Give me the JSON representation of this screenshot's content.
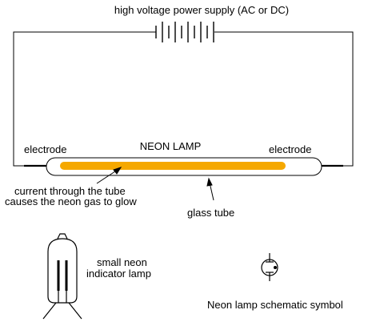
{
  "labels": {
    "power_supply": "high voltage power supply (AC or DC)",
    "neon_lamp_title": "NEON LAMP",
    "electrode_left": "electrode",
    "electrode_right": "electrode",
    "current_line1": "current through the tube",
    "current_line2": "causes the neon gas to glow",
    "glass_tube": "glass tube",
    "indicator_line1": "small neon",
    "indicator_line2": "indicator lamp",
    "schematic_symbol": "Neon lamp schematic symbol"
  },
  "colors": {
    "glow": "#f5a800",
    "line": "#000000",
    "background": "#ffffff"
  }
}
